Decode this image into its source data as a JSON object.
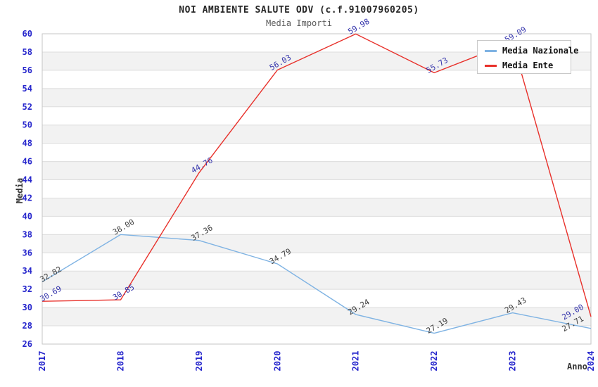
{
  "title": "NOI AMBIENTE SALUTE ODV (c.f.91007960205)",
  "subtitle": "Media Importi",
  "chart_data": {
    "type": "line",
    "x": [
      "2017",
      "2018",
      "2019",
      "2020",
      "2021",
      "2022",
      "2023",
      "2024"
    ],
    "series": [
      {
        "name": "Media Nazionale",
        "color": "#7FB3E3",
        "label_color": "#3D3D3D",
        "values": [
          32.82,
          38.0,
          37.36,
          34.79,
          29.24,
          27.19,
          29.43,
          27.71
        ]
      },
      {
        "name": "Media Ente",
        "color": "#E8302A",
        "label_color": "#3434AB",
        "values": [
          30.69,
          30.85,
          44.76,
          56.03,
          59.98,
          55.73,
          59.09,
          29.0
        ]
      }
    ],
    "xlabel": "Anno",
    "ylabel": "Media",
    "ylim": [
      26,
      60
    ],
    "ytick_step": 2,
    "yticks": [
      26,
      28,
      30,
      32,
      34,
      36,
      38,
      40,
      42,
      44,
      46,
      48,
      50,
      52,
      54,
      56,
      58,
      60
    ],
    "grid": "alternating-horizontal-bands",
    "legend_position": "top-right"
  },
  "colors": {
    "tick_label": "#2626CC",
    "band_fill": "#F2F2F2",
    "grid_line": "#DCDCDC",
    "plot_border": "#C6C6C6",
    "title_text": "#262626",
    "subtitle_text": "#595959",
    "axis_title_text": "#333333",
    "legend_text": "#111111",
    "legend_border": "#C9C9C9",
    "background": "#FFFFFF"
  }
}
